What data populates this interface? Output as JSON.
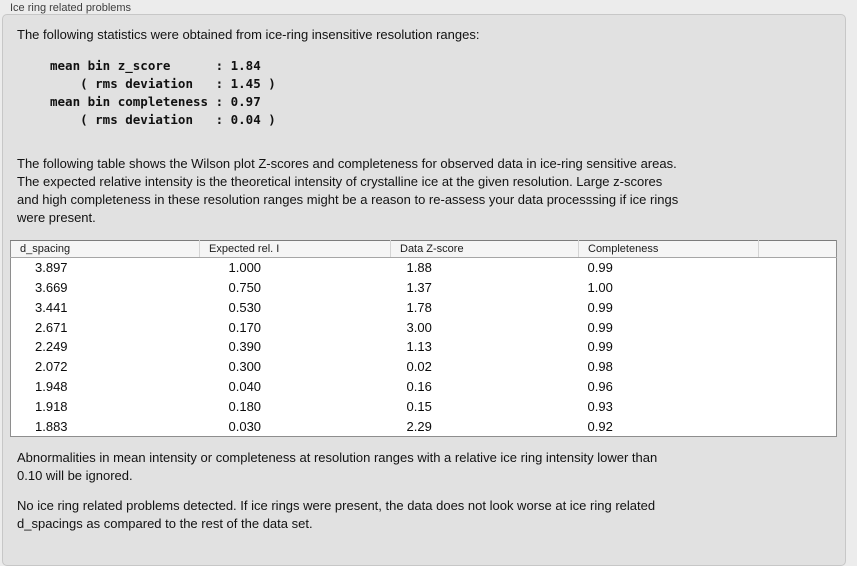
{
  "panel": {
    "title": "Ice ring related problems"
  },
  "intro": "The following statistics were obtained from ice-ring insensitive resolution ranges:",
  "stats_block": "mean bin z_score      : 1.84\n    ( rms deviation   : 1.45 )\nmean bin completeness : 0.97\n    ( rms deviation   : 0.04 )",
  "stats": {
    "mean_bin_z_score": "1.84",
    "z_score_rms_deviation": "1.45",
    "mean_bin_completeness": "0.97",
    "completeness_rms_deviation": "0.04"
  },
  "description": "The following table shows the Wilson plot Z-scores and completeness for observed data in ice-ring sensitive areas.\nThe expected relative intensity is the theoretical intensity of crystalline ice at the given resolution. Large z-scores\nand high completeness in these resolution ranges might be a reason to re-assess your data processsing if ice rings\nwere present.",
  "table": {
    "headers": [
      "d_spacing",
      "Expected rel. I",
      "Data Z-score",
      "Completeness",
      ""
    ],
    "rows": [
      [
        "3.897",
        "1.000",
        "1.88",
        "0.99"
      ],
      [
        "3.669",
        "0.750",
        "1.37",
        "1.00"
      ],
      [
        "3.441",
        "0.530",
        "1.78",
        "0.99"
      ],
      [
        "2.671",
        "0.170",
        "3.00",
        "0.99"
      ],
      [
        "2.249",
        "0.390",
        "1.13",
        "0.99"
      ],
      [
        "2.072",
        "0.300",
        "0.02",
        "0.98"
      ],
      [
        "1.948",
        "0.040",
        "0.16",
        "0.96"
      ],
      [
        "1.918",
        "0.180",
        "0.15",
        "0.93"
      ],
      [
        "1.883",
        "0.030",
        "2.29",
        "0.92"
      ]
    ]
  },
  "footnote": "Abnormalities in mean intensity or completeness at resolution ranges with a relative ice ring intensity lower than\n0.10 will be ignored.",
  "conclusion": "No ice ring related problems detected. If ice rings were present, the data does not look worse at ice ring related\nd_spacings as compared to the rest of the data set.",
  "colors": {
    "page_bg": "#ececec",
    "groupbox_bg": "#e1e1e1",
    "groupbox_border": "#c7c7c7",
    "table_bg": "#ffffff",
    "table_border": "#8e8e8e",
    "table_header_bg": "#f5f5f5",
    "text": "#141414"
  }
}
